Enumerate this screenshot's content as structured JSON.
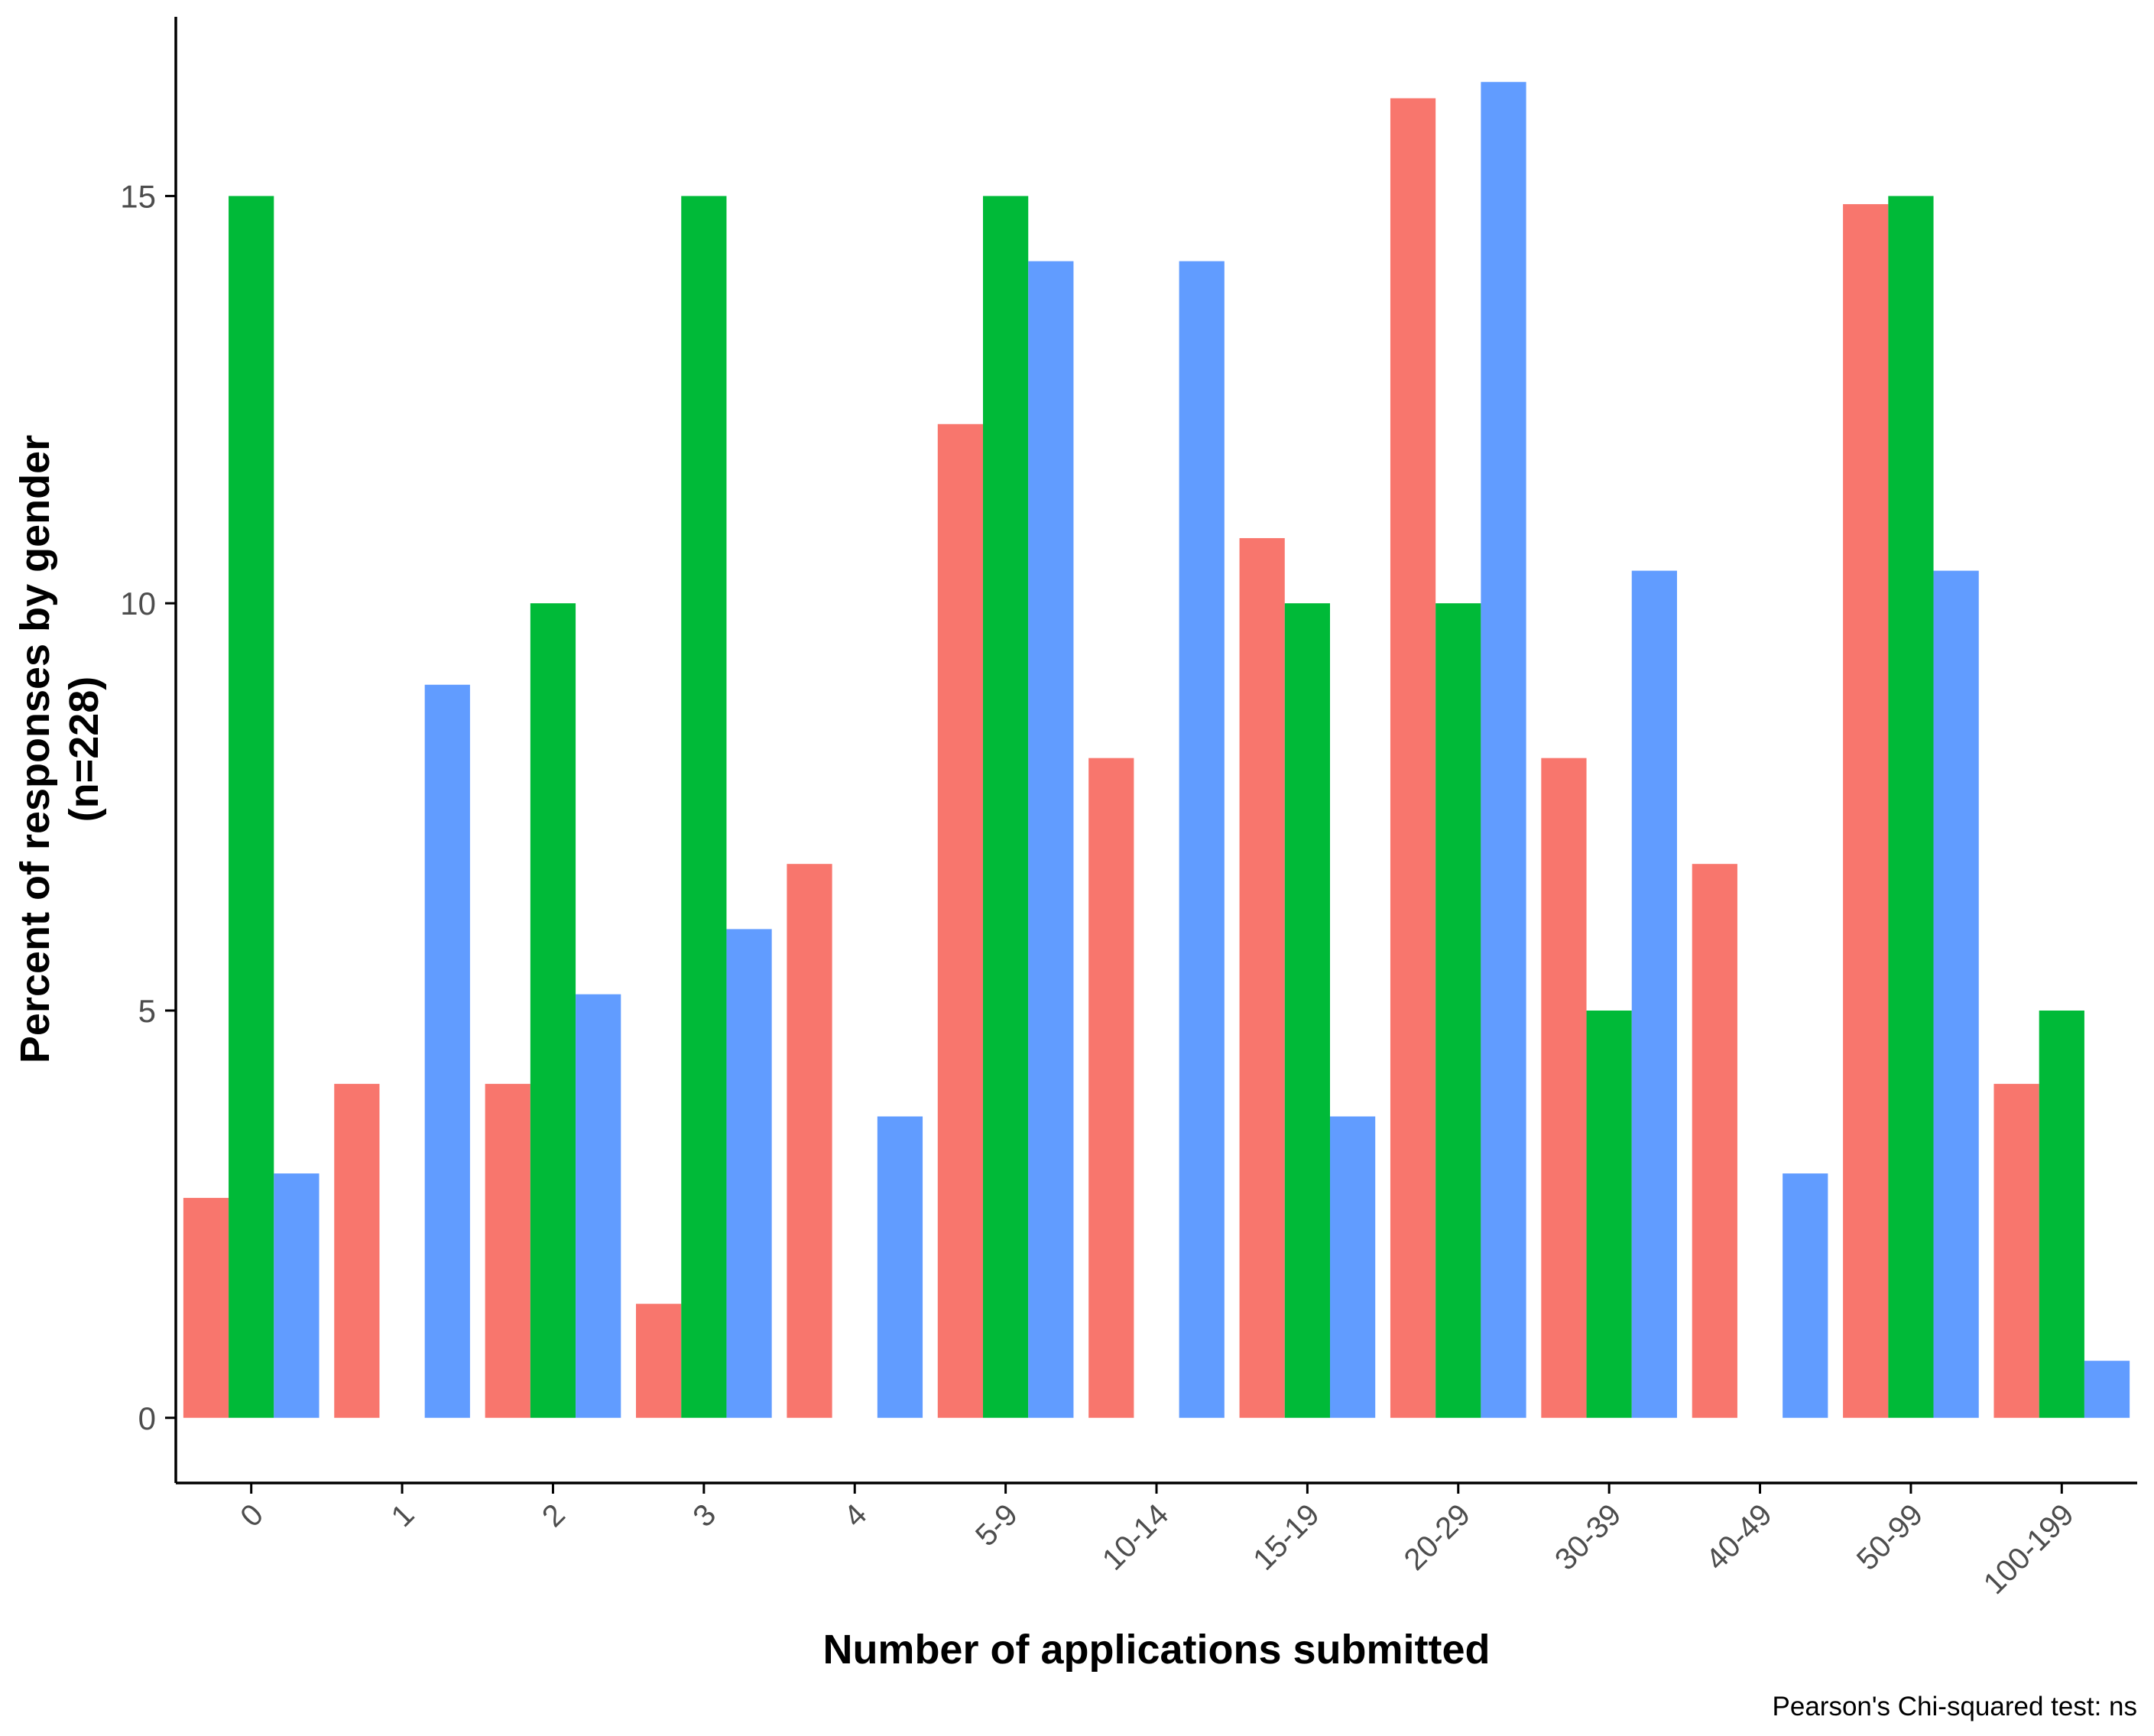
{
  "chart_data": {
    "type": "bar",
    "title": "",
    "xlabel": "Number of applications submitted",
    "ylabel": [
      "Percent of responses by gender",
      "(n=228)"
    ],
    "caption": "Pearson's Chi-squared test: ns",
    "categories": [
      "0",
      "1",
      "2",
      "3",
      "4",
      "5-9",
      "10-14",
      "15-19",
      "20-29",
      "30-39",
      "40-49",
      "50-99",
      "100-199"
    ],
    "yticks": [
      0,
      5,
      10,
      15
    ],
    "ylim": [
      -0.8,
      17.2
    ],
    "grid": false,
    "legend": "none",
    "series": [
      {
        "color": "#F8766D",
        "values": [
          2.7,
          4.1,
          4.1,
          1.4,
          6.8,
          12.2,
          8.1,
          10.8,
          16.2,
          8.1,
          6.8,
          14.9,
          4.1
        ]
      },
      {
        "color": "#00BA38",
        "values": [
          15,
          0,
          10,
          15,
          0,
          15,
          0,
          10,
          10,
          5,
          0,
          15,
          5
        ]
      },
      {
        "color": "#619CFF",
        "values": [
          3.0,
          9.0,
          5.2,
          6.0,
          3.7,
          14.2,
          14.2,
          3.7,
          16.4,
          10.4,
          3.0,
          10.4,
          0.7
        ]
      }
    ]
  }
}
